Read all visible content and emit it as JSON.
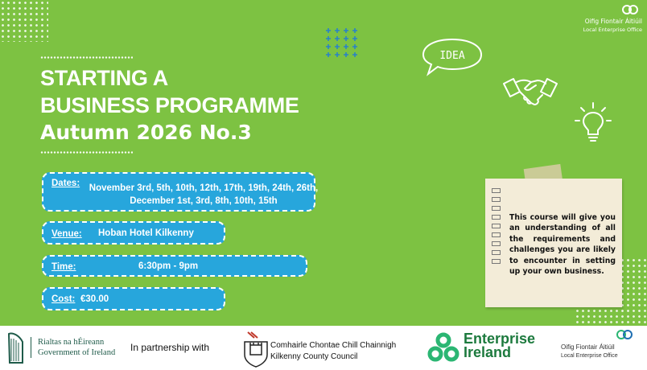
{
  "brand": {
    "office_line1": "Oifig Fiontair Áitiúil",
    "office_line2": "Local Enterprise Office"
  },
  "title": {
    "line1": "STARTING A",
    "line2": "BUSINESS PROGRAMME",
    "line3": "Autumn 2026 No.3"
  },
  "details": {
    "dates_label": "Dates:",
    "dates_value": "November 3rd, 5th, 10th, 12th, 17th, 19th, 24th, 26th, December 1st, 3rd, 8th, 10th, 15th",
    "venue_label": "Venue:",
    "venue_value": "Hoban Hotel Kilkenny",
    "time_label": "Time:",
    "time_value": "6:30pm - 9pm",
    "cost_label": "Cost:",
    "cost_value": "€30.00"
  },
  "note": {
    "text": "This course will give you an understanding of all the requirements and challenges you are likely to encounter in setting up your own business."
  },
  "icons": {
    "idea_text": "IDEA",
    "names": [
      "idea-bubble-icon",
      "handshake-icon",
      "lightbulb-icon",
      "harp-icon",
      "kcc-crest-icon",
      "enterprise-ireland-icon",
      "leo-icon"
    ]
  },
  "footer": {
    "gov_line1": "Rialtas na hÉireann",
    "gov_line2": "Government of Ireland",
    "partnership": "In partnership with",
    "kcc_line1": "Comhairle Chontae Chill Chainnigh",
    "kcc_line2": "Kilkenny County Council",
    "ei_line1": "Enterprise",
    "ei_line2": "Ireland",
    "leo_line1": "Oifig Fiontair Áitiúil",
    "leo_line2": "Local Enterprise Office"
  },
  "colors": {
    "background": "#7dc242",
    "pill": "#27a6dc",
    "note": "#f3ecd8",
    "enterprise_green": "#1d7a3e"
  }
}
